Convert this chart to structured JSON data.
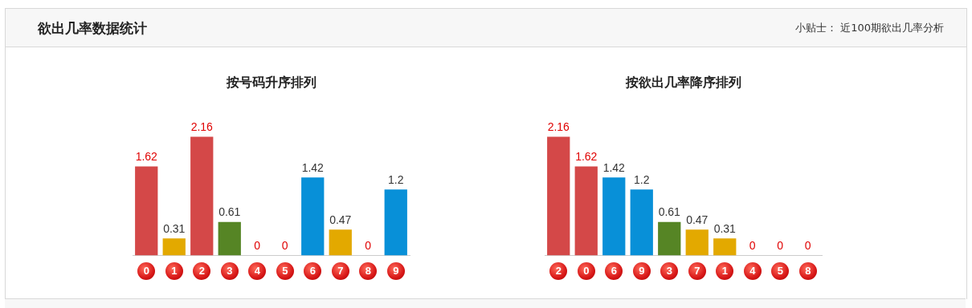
{
  "chart_data": [
    {
      "type": "other",
      "title": "欲出几率数据统计",
      "annotations": [
        "小贴士：  近100期欲出几率分析"
      ]
    },
    {
      "type": "bar",
      "title": "按号码升序排列",
      "categories": [
        "0",
        "1",
        "2",
        "3",
        "4",
        "5",
        "6",
        "7",
        "8",
        "9"
      ],
      "values": [
        1.62,
        0.31,
        2.16,
        0.61,
        0,
        0,
        1.42,
        0.47,
        0,
        1.2
      ],
      "colors": [
        "#d44848",
        "#e3a900",
        "#d44848",
        "#568525",
        "#d44848",
        "#d44848",
        "#0890d8",
        "#e3a900",
        "#d44848",
        "#0890d8"
      ],
      "data_labels": true,
      "tick_labels": "x",
      "grid": false,
      "legend": false
    },
    {
      "type": "bar",
      "title": "按欲出几率降序排列",
      "categories": [
        "2",
        "0",
        "6",
        "9",
        "3",
        "7",
        "1",
        "4",
        "5",
        "8"
      ],
      "values": [
        2.16,
        1.62,
        1.42,
        1.2,
        0.61,
        0.47,
        0.31,
        0,
        0,
        0
      ],
      "colors": [
        "#d44848",
        "#d44848",
        "#0890d8",
        "#0890d8",
        "#568525",
        "#e3a900",
        "#e3a900",
        "#d44848",
        "#d44848",
        "#d44848"
      ],
      "data_labels": true,
      "tick_labels": "x",
      "grid": false,
      "legend": false
    }
  ]
}
